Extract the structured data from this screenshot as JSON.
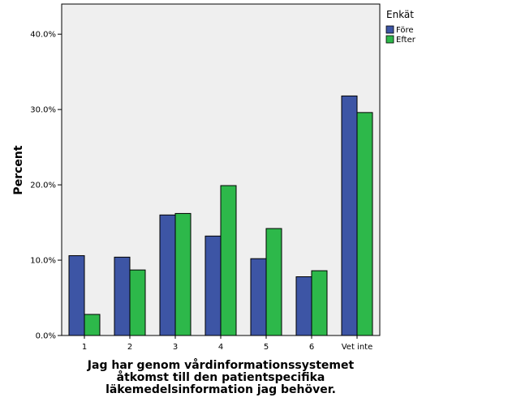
{
  "chart_data": {
    "type": "bar",
    "title": "",
    "xlabel_lines": [
      "Jag har genom vårdinformationssystemet",
      "åtkomst till den patientspecifika",
      "läkemedelsinformation jag behöver."
    ],
    "ylabel": "Percent",
    "categories": [
      "1",
      "2",
      "3",
      "4",
      "5",
      "6",
      "Vet inte"
    ],
    "series": [
      {
        "name": "Före",
        "color": "#3d55a5",
        "values": [
          10.6,
          10.4,
          16.0,
          13.2,
          10.2,
          7.8,
          31.8
        ]
      },
      {
        "name": "Efter",
        "color": "#2db84a",
        "values": [
          2.8,
          8.7,
          16.2,
          19.9,
          14.2,
          8.6,
          29.6
        ]
      }
    ],
    "ylim": [
      0,
      44
    ],
    "yticks": [
      0,
      10,
      20,
      30,
      40
    ],
    "ytick_labels": [
      "0.0%",
      "10.0%",
      "20.0%",
      "30.0%",
      "40.0%"
    ],
    "plot_background": "#efefef",
    "legend": {
      "title": "Enkät",
      "placement": "top-right outside"
    },
    "grid": false
  }
}
